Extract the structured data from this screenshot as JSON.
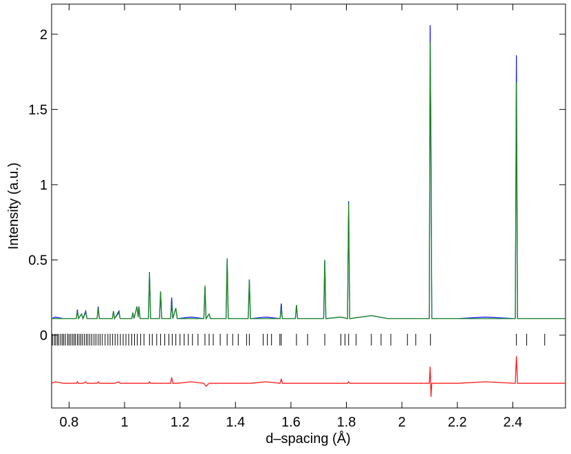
{
  "chart_data": {
    "type": "line",
    "x_label": "d–spacing (Å)",
    "y_label": "Intensity (a.u.)",
    "x": [
      0.737,
      0.75,
      0.78,
      0.826,
      0.83,
      0.834,
      0.845,
      0.85,
      0.86,
      0.865,
      0.901,
      0.905,
      0.909,
      0.956,
      0.96,
      0.964,
      0.98,
      0.984,
      1.026,
      1.03,
      1.034,
      1.045,
      1.049,
      1.052,
      1.056,
      1.086,
      1.09,
      1.094,
      1.126,
      1.13,
      1.134,
      1.166,
      1.17,
      1.174,
      1.185,
      1.19,
      1.24,
      1.286,
      1.29,
      1.294,
      1.305,
      1.31,
      1.366,
      1.37,
      1.374,
      1.41,
      1.446,
      1.45,
      1.454,
      1.51,
      1.561,
      1.565,
      1.569,
      1.616,
      1.62,
      1.624,
      1.68,
      1.718,
      1.722,
      1.726,
      1.78,
      1.804,
      1.808,
      1.812,
      1.89,
      1.95,
      2.03,
      2.099,
      2.102,
      2.105,
      2.108,
      2.2,
      2.3,
      2.409,
      2.413,
      2.417,
      2.5,
      2.59
    ],
    "series": [
      {
        "color": "#1a1aff",
        "values": [
          0.11,
          0.12,
          0.11,
          0.11,
          0.17,
          0.11,
          0.14,
          0.11,
          0.16,
          0.11,
          0.11,
          0.19,
          0.11,
          0.11,
          0.16,
          0.11,
          0.16,
          0.11,
          0.11,
          0.15,
          0.11,
          0.19,
          0.12,
          0.19,
          0.11,
          0.11,
          0.42,
          0.11,
          0.11,
          0.29,
          0.11,
          0.11,
          0.25,
          0.11,
          0.18,
          0.11,
          0.12,
          0.11,
          0.32,
          0.11,
          0.14,
          0.11,
          0.11,
          0.51,
          0.11,
          0.11,
          0.11,
          0.37,
          0.11,
          0.12,
          0.11,
          0.21,
          0.11,
          0.11,
          0.2,
          0.11,
          0.11,
          0.11,
          0.5,
          0.11,
          0.12,
          0.11,
          0.89,
          0.11,
          0.13,
          0.11,
          0.11,
          0.11,
          2.06,
          1.2,
          0.11,
          0.11,
          0.12,
          0.11,
          1.86,
          0.11,
          0.11,
          0.11
        ]
      },
      {
        "color": "#1a8a1a",
        "values": [
          0.11,
          0.11,
          0.11,
          0.11,
          0.16,
          0.11,
          0.14,
          0.11,
          0.15,
          0.11,
          0.11,
          0.18,
          0.11,
          0.11,
          0.16,
          0.11,
          0.15,
          0.11,
          0.11,
          0.15,
          0.11,
          0.19,
          0.12,
          0.19,
          0.11,
          0.11,
          0.41,
          0.11,
          0.11,
          0.29,
          0.11,
          0.11,
          0.21,
          0.11,
          0.18,
          0.11,
          0.11,
          0.11,
          0.33,
          0.11,
          0.14,
          0.11,
          0.11,
          0.51,
          0.11,
          0.11,
          0.11,
          0.37,
          0.11,
          0.11,
          0.11,
          0.18,
          0.11,
          0.11,
          0.2,
          0.11,
          0.11,
          0.11,
          0.5,
          0.11,
          0.12,
          0.11,
          0.88,
          0.11,
          0.13,
          0.11,
          0.11,
          0.11,
          1.95,
          1.29,
          0.11,
          0.11,
          0.11,
          0.11,
          1.68,
          0.11,
          0.11,
          0.11
        ]
      },
      {
        "color": "#ff1a1a",
        "values": [
          -0.32,
          -0.31,
          -0.32,
          -0.32,
          -0.31,
          -0.32,
          -0.32,
          -0.32,
          -0.31,
          -0.32,
          -0.32,
          -0.31,
          -0.32,
          -0.32,
          -0.32,
          -0.32,
          -0.31,
          -0.32,
          -0.32,
          -0.32,
          -0.32,
          -0.32,
          -0.32,
          -0.32,
          -0.32,
          -0.32,
          -0.31,
          -0.32,
          -0.32,
          -0.32,
          -0.32,
          -0.32,
          -0.28,
          -0.32,
          -0.32,
          -0.32,
          -0.31,
          -0.32,
          -0.33,
          -0.34,
          -0.32,
          -0.32,
          -0.32,
          -0.32,
          -0.32,
          -0.32,
          -0.32,
          -0.32,
          -0.32,
          -0.31,
          -0.32,
          -0.29,
          -0.32,
          -0.32,
          -0.32,
          -0.32,
          -0.32,
          -0.32,
          -0.32,
          -0.32,
          -0.32,
          -0.32,
          -0.31,
          -0.32,
          -0.32,
          -0.32,
          -0.32,
          -0.32,
          -0.21,
          -0.41,
          -0.32,
          -0.32,
          -0.31,
          -0.32,
          -0.14,
          -0.32,
          -0.32,
          -0.32
        ]
      }
    ],
    "reflections": [
      0.74,
      0.747,
      0.752,
      0.758,
      0.763,
      0.77,
      0.776,
      0.781,
      0.787,
      0.795,
      0.8,
      0.806,
      0.812,
      0.818,
      0.823,
      0.83,
      0.836,
      0.842,
      0.848,
      0.855,
      0.862,
      0.868,
      0.875,
      0.882,
      0.89,
      0.897,
      0.905,
      0.912,
      0.92,
      0.93,
      0.94,
      0.948,
      0.957,
      0.966,
      0.975,
      0.985,
      0.995,
      1.005,
      1.015,
      1.026,
      1.036,
      1.046,
      1.058,
      1.07,
      1.09,
      1.1,
      1.116,
      1.13,
      1.145,
      1.16,
      1.172,
      1.185,
      1.2,
      1.215,
      1.23,
      1.245,
      1.265,
      1.29,
      1.305,
      1.32,
      1.345,
      1.37,
      1.39,
      1.41,
      1.44,
      1.45,
      1.5,
      1.515,
      1.53,
      1.56,
      1.565,
      1.62,
      1.66,
      1.722,
      1.78,
      1.795,
      1.808,
      1.835,
      1.89,
      1.925,
      1.96,
      2.02,
      2.05,
      2.103,
      2.413,
      2.45,
      2.515
    ],
    "reflection_color": "#000000",
    "xlim": [
      0.737,
      2.59
    ],
    "xticks": [
      0.8,
      1,
      1.2,
      1.4,
      1.6,
      1.8,
      2,
      2.2,
      2.4
    ],
    "ylim": [
      -0.484,
      2.2
    ],
    "yticks": [
      0,
      0.5,
      1,
      1.5,
      2
    ]
  }
}
